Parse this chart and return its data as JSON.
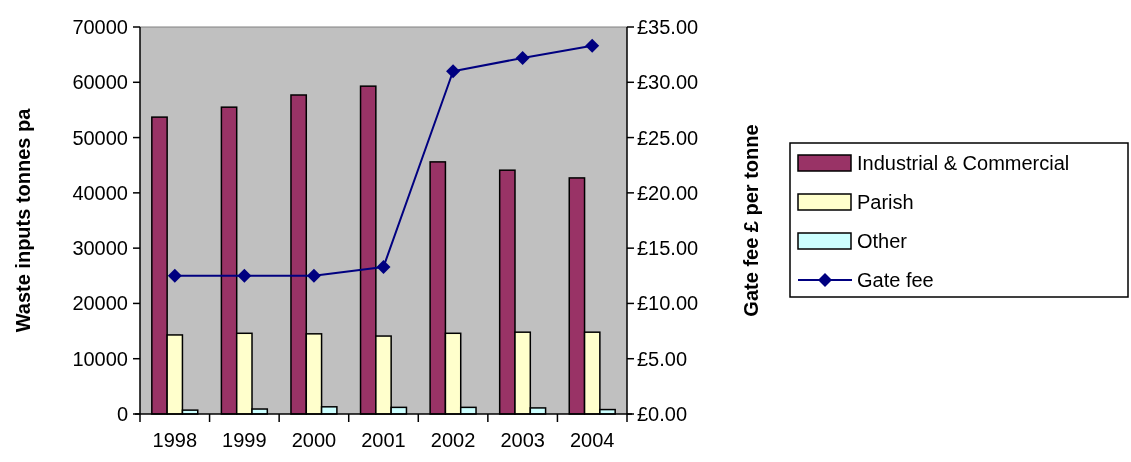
{
  "chart_data": {
    "type": "bar",
    "categories": [
      "1998",
      "1999",
      "2000",
      "2001",
      "2002",
      "2003",
      "2004"
    ],
    "ylabel": "Waste inputs tonnes pa",
    "y2label": "Gate fee £ per tonne",
    "ylim": [
      0,
      70000
    ],
    "yticks": [
      0,
      10000,
      20000,
      30000,
      40000,
      50000,
      60000,
      70000
    ],
    "y2lim": [
      0,
      35
    ],
    "y2ticks": [
      {
        "value": 0,
        "label": "£0.00"
      },
      {
        "value": 5,
        "label": "£5.00"
      },
      {
        "value": 10,
        "label": "£10.00"
      },
      {
        "value": 15,
        "label": "£15.00"
      },
      {
        "value": 20,
        "label": "£20.00"
      },
      {
        "value": 25,
        "label": "£25.00"
      },
      {
        "value": 30,
        "label": "£30.00"
      },
      {
        "value": 35,
        "label": "£35.00"
      }
    ],
    "legend": "right",
    "grid": false,
    "series": [
      {
        "name": "Industrial & Commercial",
        "color": "#993366",
        "values": [
          53700,
          55500,
          57700,
          59300,
          45600,
          44100,
          42700
        ]
      },
      {
        "name": "Parish",
        "color": "#ffffcc",
        "values": [
          14300,
          14600,
          14500,
          14100,
          14600,
          14800,
          14800
        ]
      },
      {
        "name": "Other",
        "color": "#ccffff",
        "values": [
          700,
          900,
          1300,
          1200,
          1200,
          1100,
          800
        ]
      },
      {
        "name": "Gate fee",
        "type": "line",
        "axis": "y2",
        "color": "#000080",
        "marker": "diamond",
        "values": [
          12.5,
          12.5,
          12.5,
          13.3,
          31.0,
          32.2,
          33.3
        ]
      }
    ]
  }
}
